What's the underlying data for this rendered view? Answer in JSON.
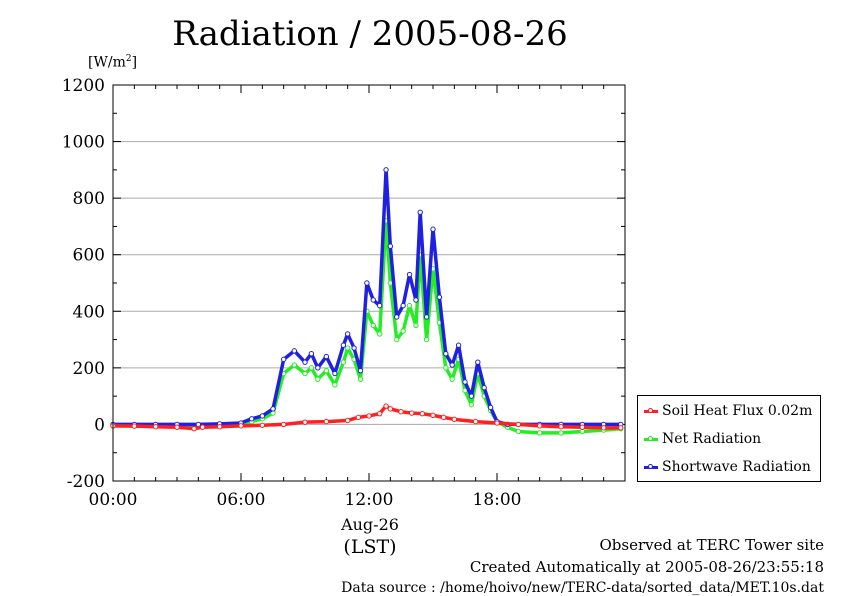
{
  "chart_data": {
    "type": "line",
    "title": "Radiation / 2005-08-26",
    "ylabel_unit": "[W/m",
    "ylabel_unit_sup": "2",
    "ylabel_unit_close": "]",
    "ylim": [
      -200,
      1200
    ],
    "yticks": [
      "-200",
      "0",
      "200",
      "400",
      "600",
      "800",
      "1000",
      "1200"
    ],
    "xlim": [
      0,
      24
    ],
    "xticks": [
      "00:00",
      "06:00",
      "12:00",
      "18:00"
    ],
    "x_date_label": "Aug-26",
    "x_tz_label": "(LST)",
    "grid": true,
    "legend_position": "lower-right outside",
    "series": [
      {
        "name": "Soil Heat Flux 0.02m",
        "color": "#ff2020",
        "x": [
          0,
          1,
          2,
          3,
          3.8,
          4.2,
          5,
          6,
          7,
          8,
          9,
          10,
          11,
          11.5,
          12,
          12.5,
          12.8,
          13,
          13.5,
          14,
          14.5,
          15,
          15.5,
          16,
          17,
          18,
          19,
          20,
          21,
          22,
          23,
          23.8
        ],
        "values": [
          -5,
          -6,
          -8,
          -10,
          -15,
          -10,
          -8,
          -5,
          -3,
          0,
          8,
          10,
          14,
          25,
          30,
          38,
          65,
          55,
          45,
          40,
          38,
          32,
          25,
          18,
          10,
          5,
          0,
          -5,
          -8,
          -10,
          -12,
          -12
        ]
      },
      {
        "name": "Net Radiation",
        "color": "#22ee22",
        "x": [
          0,
          1,
          2,
          3,
          4,
          5,
          6,
          6.5,
          7,
          7.5,
          8,
          8.5,
          9,
          9.3,
          9.6,
          10,
          10.4,
          10.8,
          11,
          11.3,
          11.6,
          11.9,
          12.2,
          12.5,
          12.8,
          13.0,
          13.3,
          13.6,
          13.9,
          14.2,
          14.4,
          14.7,
          15.0,
          15.3,
          15.6,
          15.9,
          16.2,
          16.5,
          16.8,
          17.1,
          17.4,
          17.7,
          18,
          18.5,
          19,
          20,
          21,
          22,
          23,
          23.8
        ],
        "values": [
          -5,
          -5,
          -6,
          -8,
          -5,
          -3,
          0,
          10,
          20,
          40,
          180,
          210,
          180,
          200,
          160,
          190,
          140,
          220,
          270,
          230,
          160,
          400,
          350,
          320,
          720,
          500,
          300,
          330,
          420,
          350,
          600,
          300,
          550,
          360,
          200,
          160,
          230,
          120,
          70,
          180,
          100,
          50,
          10,
          -10,
          -25,
          -30,
          -30,
          -25,
          -20,
          -15
        ]
      },
      {
        "name": "Shortwave Radiation",
        "color": "#2020e0",
        "x": [
          0,
          1,
          2,
          3,
          4,
          5,
          6,
          6.5,
          7,
          7.5,
          8,
          8.5,
          9,
          9.3,
          9.6,
          10,
          10.4,
          10.8,
          11,
          11.3,
          11.6,
          11.9,
          12.2,
          12.5,
          12.8,
          13.0,
          13.3,
          13.6,
          13.9,
          14.2,
          14.4,
          14.7,
          15.0,
          15.3,
          15.6,
          15.9,
          16.2,
          16.5,
          16.8,
          17.1,
          17.4,
          17.7,
          18,
          18.5,
          19,
          20,
          21,
          22,
          23,
          23.8
        ],
        "values": [
          0,
          0,
          0,
          0,
          0,
          2,
          5,
          20,
          30,
          55,
          230,
          260,
          220,
          250,
          200,
          240,
          180,
          280,
          320,
          270,
          190,
          500,
          440,
          420,
          900,
          630,
          380,
          420,
          530,
          440,
          750,
          380,
          690,
          450,
          250,
          210,
          280,
          150,
          100,
          220,
          130,
          60,
          10,
          0,
          0,
          0,
          0,
          0,
          0,
          0
        ]
      }
    ]
  },
  "footer": {
    "line1": "Observed at TERC Tower site",
    "line2": "Created Automatically at 2005-08-26/23:55:18",
    "line3": "Data source : /home/hoivo/new/TERC-data/sorted_data/MET.10s.dat"
  }
}
